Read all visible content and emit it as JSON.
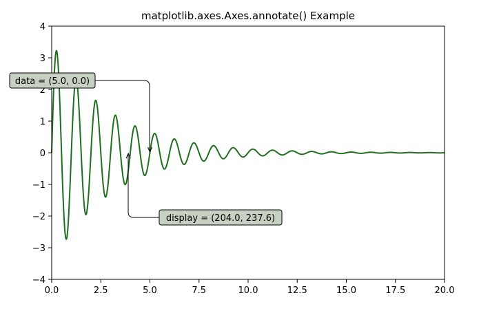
{
  "chart_data": {
    "type": "line",
    "title": "matplotlib.axes.Axes.annotate() Example",
    "xlabel": "",
    "ylabel": "",
    "xlim": [
      0,
      20
    ],
    "ylim": [
      -4,
      4
    ],
    "xticks": [
      "0.0",
      "2.5",
      "5.0",
      "7.5",
      "10.0",
      "12.5",
      "15.0",
      "17.5",
      "20.0"
    ],
    "xtick_values": [
      0,
      2.5,
      5,
      7.5,
      10,
      12.5,
      15,
      17.5,
      20
    ],
    "yticks": [
      "−4",
      "−3",
      "−2",
      "−1",
      "0",
      "1",
      "2",
      "3",
      "4"
    ],
    "ytick_values": [
      -4,
      -3,
      -2,
      -1,
      0,
      1,
      2,
      3,
      4
    ],
    "grid": false,
    "series": [
      {
        "function": "3.5 * exp(-t/3) * sin(2*pi*t)",
        "x_range": [
          0,
          20
        ],
        "color": "#1f6f1f"
      }
    ],
    "annotations": [
      {
        "text": "data = (5.0, 0.0)",
        "xy": [
          5.0,
          0.0
        ],
        "arrow": "angle-bracket from box to point (down)"
      },
      {
        "text": "display = (204.0, 237.6)",
        "xy": [
          3.9,
          0.0
        ],
        "arrow": "angle-bracket from box to point (up)"
      }
    ],
    "colors": {
      "line": "#1f6f1f",
      "annotation_box_fill": "#c8d0c4",
      "annotation_box_edge": "#000000"
    }
  }
}
